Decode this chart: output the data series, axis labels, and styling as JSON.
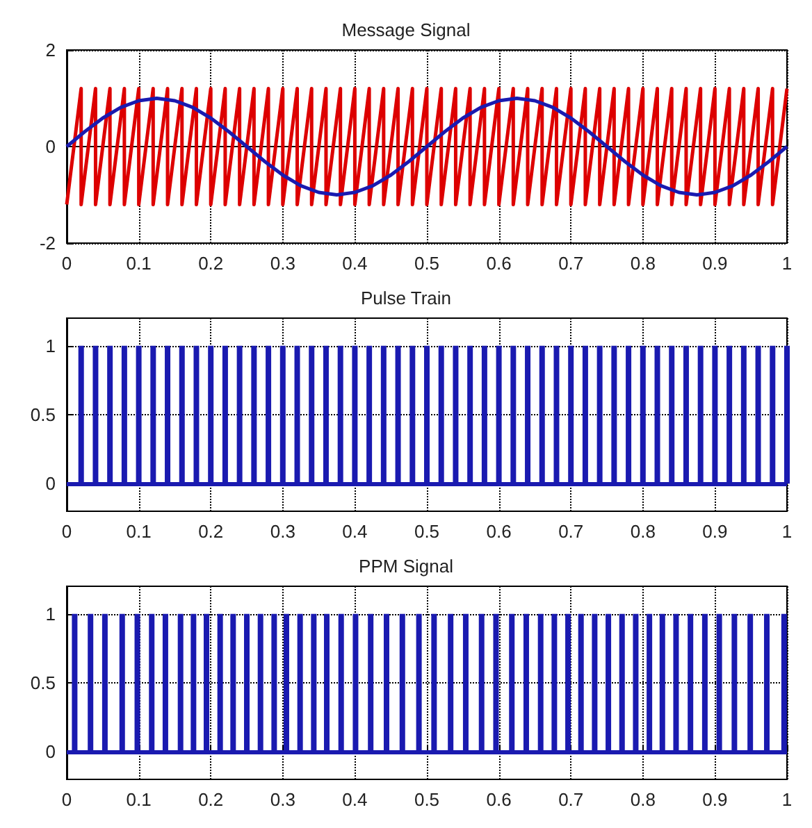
{
  "chart_data": [
    {
      "type": "line",
      "title": "Message Signal",
      "xlim": [
        0,
        1
      ],
      "xticks": [
        0,
        0.1,
        0.2,
        0.3,
        0.4,
        0.5,
        0.6,
        0.7,
        0.8,
        0.9,
        1
      ],
      "ylim": [
        -2,
        2
      ],
      "yticks": [
        -2,
        0,
        2
      ],
      "grid": true,
      "series": [
        {
          "color": "#dd0000",
          "x": [
            0,
            0.02,
            0.02,
            0.04,
            0.04,
            0.06,
            0.06,
            0.08,
            0.08,
            0.1,
            0.1,
            0.12,
            0.12,
            0.14,
            0.14,
            0.16,
            0.16,
            0.18,
            0.18,
            0.2,
            0.2,
            0.22,
            0.22,
            0.24,
            0.24,
            0.26,
            0.26,
            0.28,
            0.28,
            0.3,
            0.3,
            0.32,
            0.32,
            0.34,
            0.34,
            0.36,
            0.36,
            0.38,
            0.38,
            0.4,
            0.4,
            0.42,
            0.42,
            0.44,
            0.44,
            0.46,
            0.46,
            0.48,
            0.48,
            0.5,
            0.5,
            0.52,
            0.52,
            0.54,
            0.54,
            0.56,
            0.56,
            0.58,
            0.58,
            0.6,
            0.6,
            0.62,
            0.62,
            0.64,
            0.64,
            0.66,
            0.66,
            0.68,
            0.68,
            0.7,
            0.7,
            0.72,
            0.72,
            0.74,
            0.74,
            0.76,
            0.76,
            0.78,
            0.78,
            0.8,
            0.8,
            0.82,
            0.82,
            0.84,
            0.84,
            0.86,
            0.86,
            0.88,
            0.88,
            0.9,
            0.9,
            0.92,
            0.92,
            0.94,
            0.94,
            0.96,
            0.96,
            0.98,
            0.98,
            1
          ],
          "values": [
            -1.2,
            1.2,
            -1.2,
            1.2,
            -1.2,
            1.2,
            -1.2,
            1.2,
            -1.2,
            1.2,
            -1.2,
            1.2,
            -1.2,
            1.2,
            -1.2,
            1.2,
            -1.2,
            1.2,
            -1.2,
            1.2,
            -1.2,
            1.2,
            -1.2,
            1.2,
            -1.2,
            1.2,
            -1.2,
            1.2,
            -1.2,
            1.2,
            -1.2,
            1.2,
            -1.2,
            1.2,
            -1.2,
            1.2,
            -1.2,
            1.2,
            -1.2,
            1.2,
            -1.2,
            1.2,
            -1.2,
            1.2,
            -1.2,
            1.2,
            -1.2,
            1.2,
            -1.2,
            1.2,
            -1.2,
            1.2,
            -1.2,
            1.2,
            -1.2,
            1.2,
            -1.2,
            1.2,
            -1.2,
            1.2,
            -1.2,
            1.2,
            -1.2,
            1.2,
            -1.2,
            1.2,
            -1.2,
            1.2,
            -1.2,
            1.2,
            -1.2,
            1.2,
            -1.2,
            1.2,
            -1.2,
            1.2,
            -1.2,
            1.2,
            -1.2,
            1.2,
            -1.2,
            1.2,
            -1.2,
            1.2,
            -1.2,
            1.2,
            -1.2,
            1.2,
            -1.2,
            1.2,
            -1.2,
            1.2,
            -1.2,
            1.2,
            -1.2,
            1.2,
            -1.2,
            1.2,
            -1.2,
            1.2
          ]
        },
        {
          "color": "#1a1ab0",
          "x": [
            0,
            0.025,
            0.05,
            0.075,
            0.1,
            0.125,
            0.15,
            0.175,
            0.2,
            0.225,
            0.25,
            0.275,
            0.3,
            0.325,
            0.35,
            0.375,
            0.4,
            0.425,
            0.45,
            0.475,
            0.5,
            0.525,
            0.55,
            0.575,
            0.6,
            0.625,
            0.65,
            0.675,
            0.7,
            0.725,
            0.75,
            0.775,
            0.8,
            0.825,
            0.85,
            0.875,
            0.9,
            0.925,
            0.95,
            0.975,
            1
          ],
          "values": [
            0,
            0.31,
            0.59,
            0.81,
            0.95,
            1,
            0.95,
            0.81,
            0.59,
            0.31,
            0,
            -0.31,
            -0.59,
            -0.81,
            -0.95,
            -1,
            -0.95,
            -0.81,
            -0.59,
            -0.31,
            0,
            0.31,
            0.59,
            0.81,
            0.95,
            1,
            0.95,
            0.81,
            0.59,
            0.31,
            0,
            -0.31,
            -0.59,
            -0.81,
            -0.95,
            -1,
            -0.95,
            -0.81,
            -0.59,
            -0.31,
            0
          ]
        }
      ]
    },
    {
      "type": "bar",
      "title": "Pulse Train",
      "xlim": [
        0,
        1
      ],
      "xticks": [
        0,
        0.1,
        0.2,
        0.3,
        0.4,
        0.5,
        0.6,
        0.7,
        0.8,
        0.9,
        1
      ],
      "ylim": [
        -0.2,
        1.2
      ],
      "yticks": [
        0,
        0.5,
        1
      ],
      "grid": true,
      "ref_lines": [
        {
          "axis": "y",
          "value": 0,
          "color": "#1a1ab0"
        }
      ],
      "series": [
        {
          "color": "#1a1ab0",
          "x": [
            0.02,
            0.04,
            0.06,
            0.08,
            0.1,
            0.12,
            0.14,
            0.16,
            0.18,
            0.2,
            0.22,
            0.24,
            0.26,
            0.28,
            0.3,
            0.32,
            0.34,
            0.36,
            0.38,
            0.4,
            0.42,
            0.44,
            0.46,
            0.48,
            0.5,
            0.52,
            0.54,
            0.56,
            0.58,
            0.6,
            0.62,
            0.64,
            0.66,
            0.68,
            0.7,
            0.72,
            0.74,
            0.76,
            0.78,
            0.8,
            0.82,
            0.84,
            0.86,
            0.88,
            0.9,
            0.92,
            0.94,
            0.96,
            0.98,
            1
          ],
          "values": [
            1,
            1,
            1,
            1,
            1,
            1,
            1,
            1,
            1,
            1,
            1,
            1,
            1,
            1,
            1,
            1,
            1,
            1,
            1,
            1,
            1,
            1,
            1,
            1,
            1,
            1,
            1,
            1,
            1,
            1,
            1,
            1,
            1,
            1,
            1,
            1,
            1,
            1,
            1,
            1,
            1,
            1,
            1,
            1,
            1,
            1,
            1,
            1,
            1,
            1
          ]
        }
      ]
    },
    {
      "type": "bar",
      "title": "PPM Signal",
      "xlim": [
        0,
        1
      ],
      "xticks": [
        0,
        0.1,
        0.2,
        0.3,
        0.4,
        0.5,
        0.6,
        0.7,
        0.8,
        0.9,
        1
      ],
      "ylim": [
        -0.2,
        1.2
      ],
      "yticks": [
        0,
        0.5,
        1
      ],
      "grid": true,
      "ref_lines": [
        {
          "axis": "y",
          "value": 0,
          "color": "#1a1ab0"
        }
      ],
      "series": [
        {
          "color": "#1a1ab0",
          "x": [
            0.011,
            0.033,
            0.053,
            0.077,
            0.098,
            0.118,
            0.137,
            0.158,
            0.176,
            0.194,
            0.213,
            0.231,
            0.25,
            0.269,
            0.288,
            0.305,
            0.324,
            0.343,
            0.361,
            0.381,
            0.401,
            0.422,
            0.444,
            0.466,
            0.489,
            0.51,
            0.533,
            0.554,
            0.576,
            0.596,
            0.618,
            0.638,
            0.658,
            0.677,
            0.696,
            0.714,
            0.733,
            0.752,
            0.771,
            0.79,
            0.809,
            0.827,
            0.846,
            0.866,
            0.886,
            0.906,
            0.927,
            0.949,
            0.972,
            0.996
          ],
          "values": [
            1,
            1,
            1,
            1,
            1,
            1,
            1,
            1,
            1,
            1,
            1,
            1,
            1,
            1,
            1,
            1,
            1,
            1,
            1,
            1,
            1,
            1,
            1,
            1,
            1,
            1,
            1,
            1,
            1,
            1,
            1,
            1,
            1,
            1,
            1,
            1,
            1,
            1,
            1,
            1,
            1,
            1,
            1,
            1,
            1,
            1,
            1,
            1,
            1,
            1
          ]
        }
      ]
    }
  ]
}
